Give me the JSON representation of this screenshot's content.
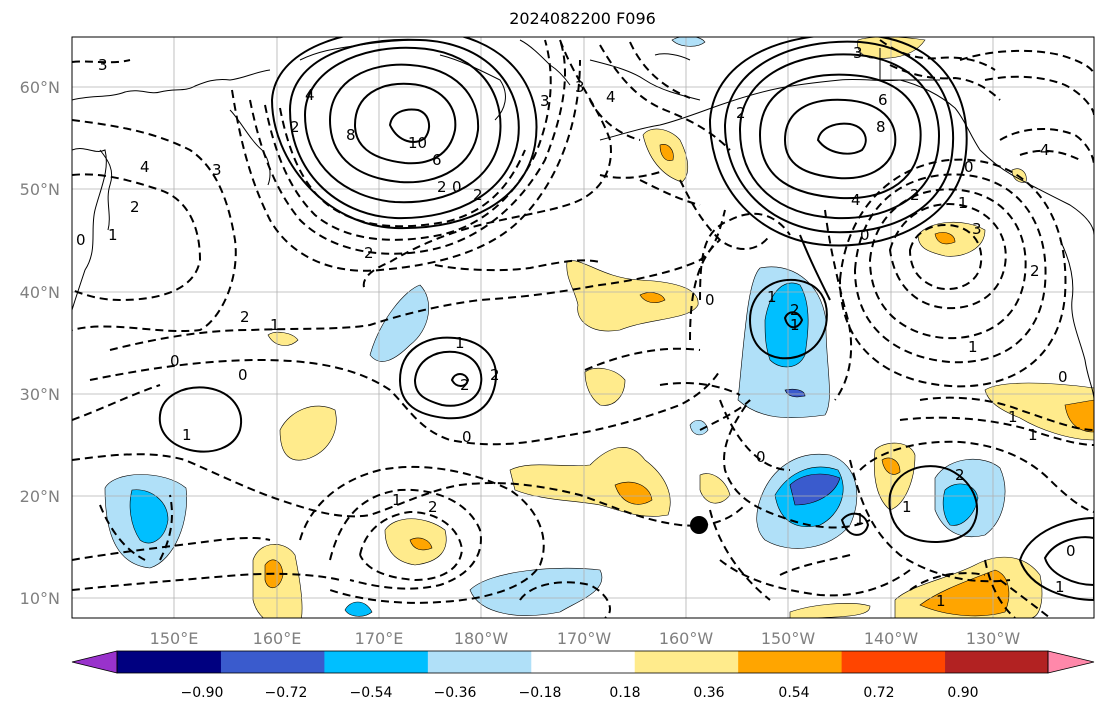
{
  "title": "2024082200 F096",
  "map": {
    "lon_labels": [
      "150°E",
      "160°E",
      "170°E",
      "180°W",
      "170°W",
      "160°W",
      "150°W",
      "140°W",
      "130°W"
    ],
    "lat_labels": [
      "60°N",
      "50°N",
      "40°N",
      "30°N",
      "20°N",
      "10°N"
    ],
    "contour_labels": [
      "3",
      "3",
      "4",
      "2",
      "0",
      "1",
      "4",
      "2",
      "8",
      "10",
      "6",
      "2",
      "0",
      "2",
      "2",
      "2",
      "1",
      "0",
      "0",
      "1",
      "2",
      "0",
      "1",
      "2",
      "1",
      "2",
      "3",
      "3",
      "3",
      "4",
      "6",
      "8",
      "4",
      "2",
      "0",
      "1",
      "2",
      "0",
      "3",
      "2",
      "1",
      "1",
      "4",
      "1",
      "1",
      "0",
      "2",
      "0",
      "1",
      "0",
      "1",
      "1",
      "2",
      "0",
      "1",
      "1"
    ],
    "marker": "filled-circle"
  },
  "colorbar": {
    "labels": [
      "−0.90",
      "−0.72",
      "−0.54",
      "−0.36",
      "−0.18",
      "0.18",
      "0.36",
      "0.54",
      "0.72",
      "0.90"
    ],
    "colors": [
      "#9932cc",
      "#000080",
      "#3a5bcd",
      "#00bfff",
      "#b0e0f8",
      "#ffffff",
      "#ffeb8c",
      "#ffa500",
      "#ff4500",
      "#b22222",
      "#ff88aa"
    ]
  }
}
